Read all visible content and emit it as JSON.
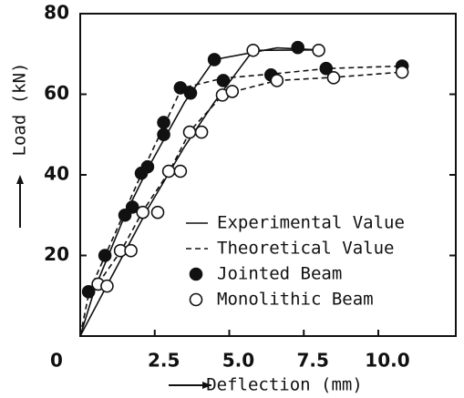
{
  "chart_data": {
    "type": "scatter",
    "xlabel": "Deflection (mm)",
    "ylabel": "Load (kN)",
    "xlim": [
      0,
      12.6
    ],
    "ylim": [
      0,
      80
    ],
    "xticks": [
      0,
      2.5,
      {
        "value": 5,
        "label": "5.0"
      },
      7.5,
      {
        "value": 10,
        "label": "10.0"
      }
    ],
    "yticks": [
      20,
      40,
      60,
      80
    ],
    "legend_lines": [
      {
        "label": "Experimental Value",
        "style": "solid"
      },
      {
        "label": "Theoretical Value",
        "style": "dashed"
      }
    ],
    "series": [
      {
        "name": "Jointed Beam",
        "color": "#111111",
        "marker": "filled",
        "x": [
          0.28,
          0.83,
          1.5,
          1.75,
          2.05,
          2.26,
          2.8,
          2.8,
          3.36,
          3.7,
          4.5,
          4.8,
          6.4,
          7.3,
          8.25,
          10.8
        ],
        "values": [
          11,
          20,
          30,
          32,
          40.4,
          42,
          53,
          50,
          61.6,
          60.3,
          68.6,
          63.4,
          64.8,
          71.6,
          66.4,
          67
        ]
      },
      {
        "name": "Monolithic Beam",
        "color": "#111111",
        "marker": "open",
        "x": [
          0.6,
          0.9,
          1.35,
          1.7,
          2.1,
          2.6,
          2.97,
          3.36,
          3.67,
          4.07,
          4.77,
          5.1,
          5.8,
          6.6,
          8.0,
          8.5,
          10.8
        ],
        "values": [
          12.9,
          12.4,
          21.2,
          21.2,
          30.7,
          30.7,
          40.9,
          40.9,
          50.6,
          50.6,
          59.8,
          60.7,
          70.9,
          63.4,
          70.9,
          64.1,
          65.5
        ]
      }
    ],
    "lines": [
      {
        "style": "solid",
        "x": [
          0,
          0.5,
          1.5,
          2.3,
          3.5,
          4.5,
          6.6,
          8.0
        ],
        "values": [
          0,
          12,
          30,
          42,
          58,
          68.6,
          71.5,
          71
        ]
      },
      {
        "style": "solid",
        "x": [
          0,
          1.0,
          2.3,
          3.5,
          4.5,
          5.8,
          8.0
        ],
        "values": [
          0,
          14,
          32,
          47,
          58,
          70.9,
          71
        ]
      },
      {
        "style": "dashed",
        "x": [
          0,
          0.3,
          0.9,
          1.5,
          2.1,
          2.8,
          3.4,
          4.8,
          6.4,
          8.3,
          10.8
        ],
        "values": [
          0,
          11,
          21,
          31,
          41,
          52,
          61.5,
          64,
          65,
          66.4,
          67
        ]
      },
      {
        "style": "dashed",
        "x": [
          0.6,
          1.4,
          2.1,
          3.0,
          3.7,
          4.8,
          6.6,
          8.5,
          10.8
        ],
        "values": [
          13,
          21.5,
          31,
          41,
          51,
          60,
          63.4,
          64.2,
          65.5
        ]
      }
    ]
  }
}
